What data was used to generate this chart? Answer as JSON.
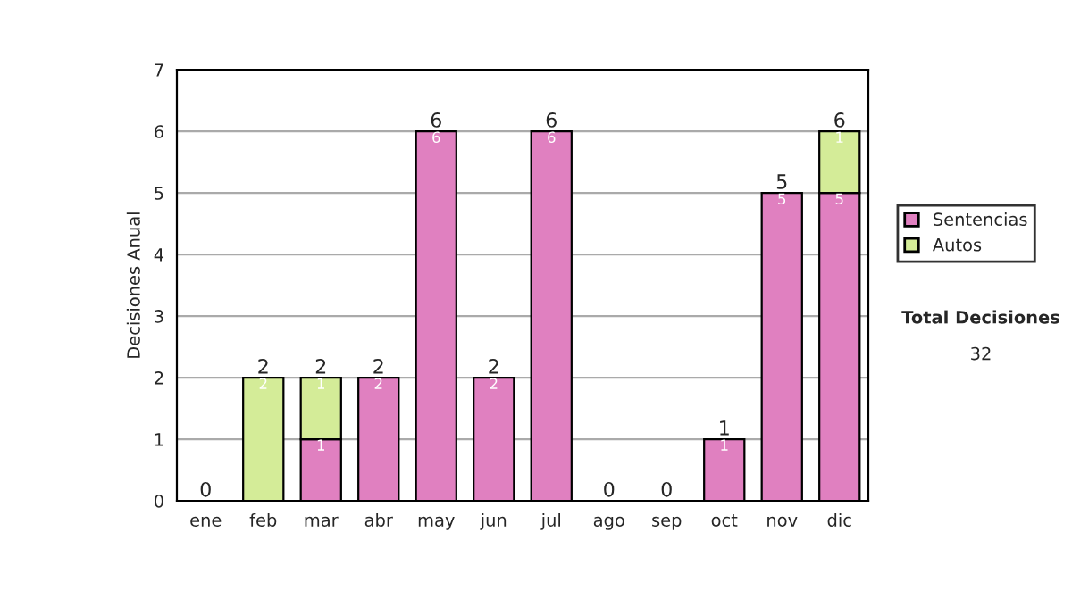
{
  "chart_data": {
    "type": "bar",
    "stacked": true,
    "ylabel": "Decisiones Anual",
    "categories": [
      "ene",
      "feb",
      "mar",
      "abr",
      "may",
      "jun",
      "jul",
      "ago",
      "sep",
      "oct",
      "nov",
      "dic"
    ],
    "series": [
      {
        "name": "Sentencias",
        "color": "#e080c0",
        "values": [
          0,
          0,
          1,
          2,
          6,
          2,
          6,
          0,
          0,
          1,
          5,
          5
        ],
        "value_labels": [
          null,
          null,
          "1",
          "2",
          "6",
          "2",
          "6",
          null,
          null,
          "1",
          "5",
          "5"
        ]
      },
      {
        "name": "Autos",
        "color": "#d4ec98",
        "values": [
          0,
          2,
          1,
          0,
          0,
          0,
          0,
          0,
          0,
          0,
          0,
          1
        ],
        "value_labels": [
          null,
          "2",
          "1",
          null,
          null,
          null,
          null,
          null,
          null,
          null,
          null,
          "1"
        ]
      }
    ],
    "totals": [
      "0",
      "2",
      "2",
      "2",
      "6",
      "2",
      "6",
      "0",
      "0",
      "1",
      "5",
      "6"
    ],
    "ylim": [
      0,
      7
    ],
    "yticks": [
      0,
      1,
      2,
      3,
      4,
      5,
      6,
      7
    ],
    "grid": "y",
    "legend": "right",
    "annotations": [
      "Total Decisiones",
      "32"
    ]
  }
}
